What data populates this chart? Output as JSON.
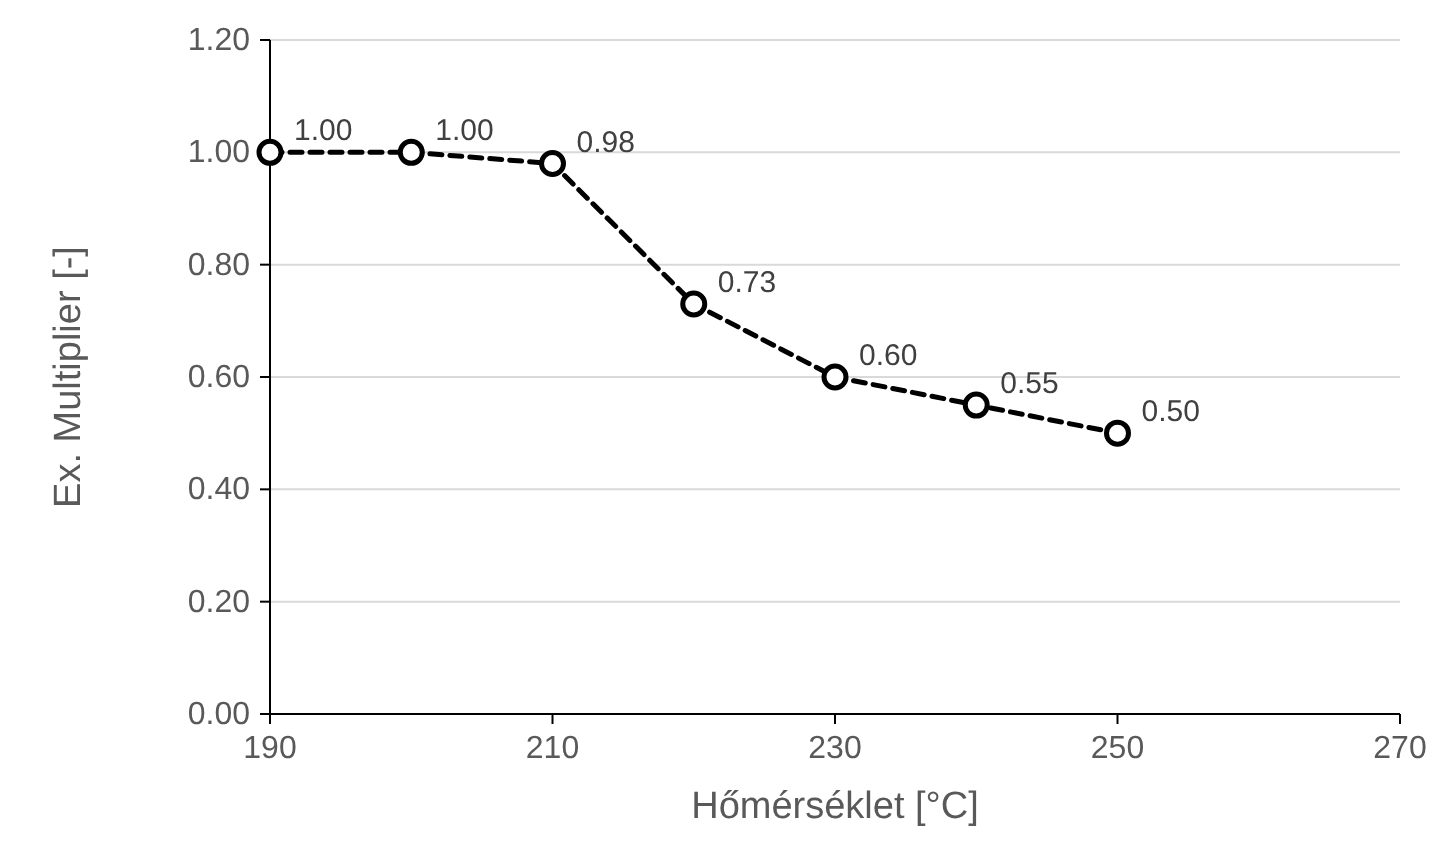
{
  "chart_data": {
    "type": "line",
    "xlabel": "Hőmérséklet [°C]",
    "ylabel": "Ex. Multiplier [-]",
    "x": [
      190,
      200,
      210,
      220,
      230,
      240,
      250
    ],
    "series": [
      {
        "color": "#000000",
        "values": [
          1.0,
          1.0,
          0.98,
          0.73,
          0.6,
          0.55,
          0.5
        ],
        "value_labels": [
          "1.00",
          "1.00",
          "0.98",
          "0.73",
          "0.60",
          "0.55",
          "0.50"
        ]
      }
    ],
    "xlim": [
      190,
      270
    ],
    "xticks": [
      190,
      210,
      230,
      250,
      270
    ],
    "ylim": [
      0,
      1.2
    ],
    "yticks": [
      {
        "value": 0,
        "label": "0.00"
      },
      {
        "value": 0.2,
        "label": "0.20"
      },
      {
        "value": 0.4,
        "label": "0.40"
      },
      {
        "value": 0.6,
        "label": "0.60"
      },
      {
        "value": 0.8,
        "label": "0.80"
      },
      {
        "value": 1.0,
        "label": "1.00"
      },
      {
        "value": 1.2,
        "label": "1.20"
      }
    ],
    "grid": "y",
    "marker": "circle",
    "line_style": "dashed"
  }
}
